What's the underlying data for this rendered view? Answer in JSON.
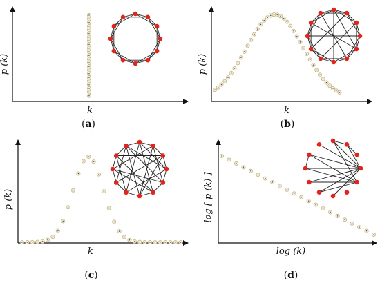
{
  "colors": {
    "axis": "#111111",
    "marker_fill": "#f4eedd",
    "marker_stroke": "#c8b98d",
    "marker_dot": "#555555",
    "node": "#e3241b",
    "edge": "#222222"
  },
  "panels": [
    {
      "id": "a",
      "caption_open": "(",
      "caption_letter": "a",
      "caption_close": ")",
      "ylabel": "p (k)",
      "xlabel": "k",
      "network_edges": "ring lattice (each node to 1st and 2nd neighbors)",
      "icon": "regular-network-icon"
    },
    {
      "id": "b",
      "caption_open": "(",
      "caption_letter": "b",
      "caption_close": ")",
      "ylabel": "p (k)",
      "xlabel": "k",
      "network_edges": "ring with a few random shortcuts",
      "icon": "small-world-network-icon"
    },
    {
      "id": "c",
      "caption_open": "(",
      "caption_letter": "c",
      "caption_close": ")",
      "ylabel": "p (k)",
      "xlabel": "k",
      "network_edges": "random graph",
      "icon": "random-network-icon"
    },
    {
      "id": "d",
      "caption_open": "(",
      "caption_letter": "d",
      "caption_close": ")",
      "ylabel": "log [ p (k) ]",
      "xlabel": "log (k)",
      "network_edges": "hub-dominated graph",
      "icon": "scale-free-network-icon"
    }
  ]
}
